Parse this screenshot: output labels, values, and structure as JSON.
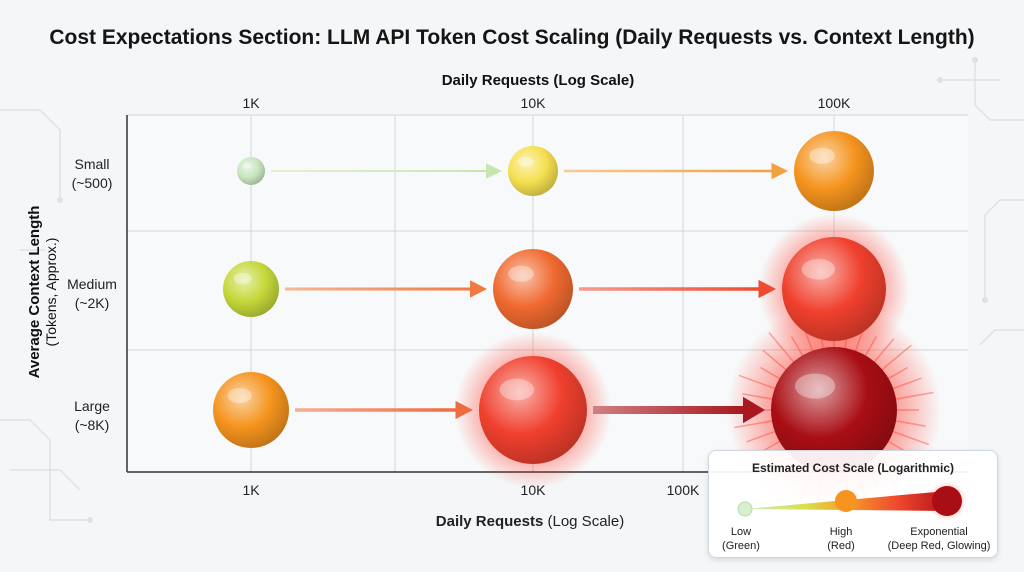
{
  "title": "Cost Expectations Section: LLM API Token Cost Scaling (Daily Requests vs. Context Length)",
  "chart_data": {
    "type": "scatter",
    "title": "Cost Expectations Section: LLM API Token Cost Scaling (Daily Requests vs. Context Length)",
    "x_axis": {
      "title": "Daily Requests (Log Scale)",
      "title_bold_part": "Daily Requests",
      "title_rest": " (Log Scale)",
      "scale": "log",
      "ticks": [
        "1K",
        "10K",
        "100K"
      ],
      "values": [
        1000,
        10000,
        100000
      ]
    },
    "y_axis": {
      "title": "Average Context Length",
      "subtitle": "(Tokens, Approx.)",
      "categories": [
        {
          "line1": "Small",
          "line2": "(~500)"
        },
        {
          "line1": "Medium",
          "line2": "(~2K)"
        },
        {
          "line1": "Large",
          "line2": "(~8K)"
        }
      ]
    },
    "points": [
      {
        "row": 0,
        "requests": 1000,
        "cost_level": "very low",
        "color": "#c8e6c0"
      },
      {
        "row": 0,
        "requests": 10000,
        "cost_level": "low-moderate",
        "color": "#f5e050"
      },
      {
        "row": 0,
        "requests": 100000,
        "cost_level": "high",
        "color": "#f5941e"
      },
      {
        "row": 1,
        "requests": 1000,
        "cost_level": "low",
        "color": "#c5d83a"
      },
      {
        "row": 1,
        "requests": 10000,
        "cost_level": "high",
        "color": "#f06a30"
      },
      {
        "row": 1,
        "requests": 100000,
        "cost_level": "very high",
        "color": "#f0402e"
      },
      {
        "row": 2,
        "requests": 1000,
        "cost_level": "moderate-high",
        "color": "#f5941e"
      },
      {
        "row": 2,
        "requests": 10000,
        "cost_level": "very high",
        "color": "#f0402e"
      },
      {
        "row": 2,
        "requests": 100000,
        "cost_level": "exponential",
        "color": "#a80e14"
      }
    ],
    "grid": true,
    "legend": {
      "placement": "bottom-right",
      "title": "Estimated Cost Scale (Logarithmic)",
      "stops": [
        {
          "line1": "Low",
          "line2": "(Green)",
          "color": "#c8e6c0"
        },
        {
          "line1": "High",
          "line2": "(Red)",
          "color": "#f5941e"
        },
        {
          "line1": "Exponential",
          "line2": "(Deep Red, Glowing)",
          "color": "#a80e14"
        }
      ]
    }
  }
}
